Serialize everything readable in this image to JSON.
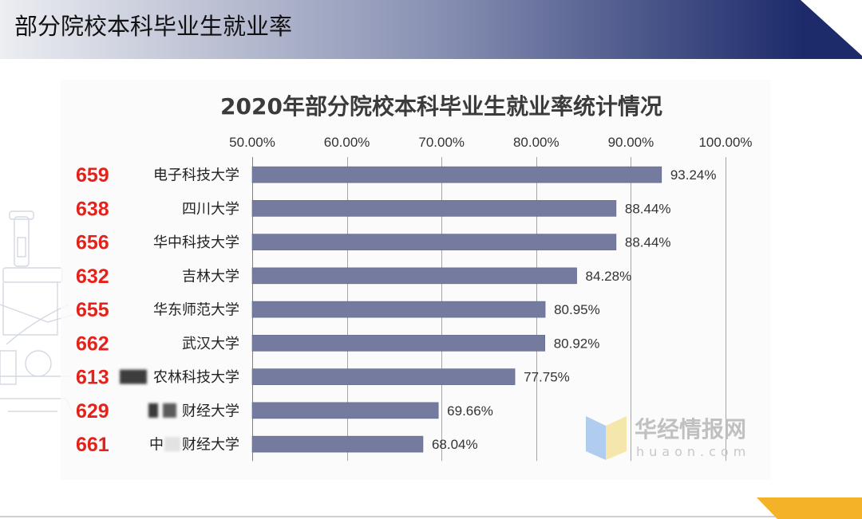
{
  "header": {
    "title": "部分院校本科毕业生就业率"
  },
  "colors": {
    "header_light": "#eceef2",
    "header_dark": "#1d2b6b",
    "bar": "#747b9e",
    "score_text": "#e3231b",
    "footer_accent": "#f4b228",
    "chart_background": "#fafafa",
    "watermark_blue": "#a8c8ee",
    "watermark_yellow": "#f5e5a3"
  },
  "side_numbers": [
    "659",
    "638",
    "656",
    "632",
    "655",
    "662",
    "613",
    "629",
    "661"
  ],
  "chart_data": {
    "type": "bar",
    "orientation": "horizontal",
    "title": "2020年部分院校本科毕业生就业率统计情况",
    "categories": [
      "电子科技大学",
      "四川大学",
      "华中科技大学",
      "吉林大学",
      "华东师范大学",
      "武汉大学",
      "农林科技大学",
      "财经大学",
      "财经大学"
    ],
    "category_prefixes": [
      "",
      "",
      "",
      "",
      "",
      "",
      "",
      "",
      "中"
    ],
    "values": [
      93.24,
      88.44,
      88.44,
      84.28,
      80.95,
      80.92,
      77.75,
      69.66,
      68.04
    ],
    "value_labels": [
      "93.24%",
      "88.44%",
      "88.44%",
      "84.28%",
      "80.95%",
      "80.92%",
      "77.75%",
      "69.66%",
      "68.04%"
    ],
    "xlim": [
      50,
      100
    ],
    "xticks": [
      50,
      60,
      70,
      80,
      90,
      100
    ],
    "xtick_labels": [
      "50.00%",
      "60.00%",
      "70.00%",
      "80.00%",
      "90.00%",
      "100.00%"
    ],
    "x_axis_position": "top",
    "xgrid": true
  },
  "watermark": {
    "name": "华经情报网",
    "site": "huaon.com"
  }
}
